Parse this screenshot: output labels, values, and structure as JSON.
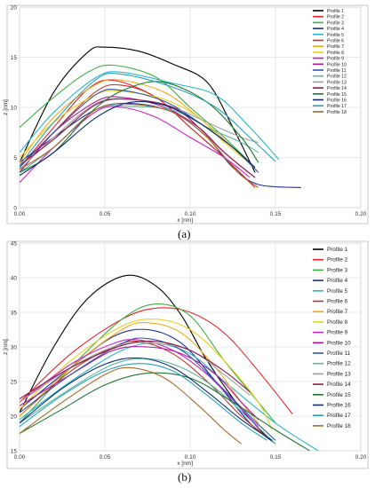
{
  "figure": {
    "panel_a_label": "(a)",
    "panel_b_label": "(b)"
  },
  "chart_data": [
    {
      "type": "line",
      "panel": "(a)",
      "title": "",
      "xlabel": "x [nm]",
      "ylabel": "z [nm]",
      "xlim": [
        0.0,
        0.2
      ],
      "ylim": [
        0,
        20
      ],
      "xticks": [
        "0.00",
        "0.05",
        "0.10",
        "0.15",
        "0.20"
      ],
      "yticks": [
        "0",
        "5",
        "10",
        "15",
        "20"
      ],
      "grid": true,
      "legend_position": "right-outside",
      "series": [
        {
          "name": "Profile 1",
          "color": "#000000",
          "x": [
            0.0,
            0.02,
            0.04,
            0.05,
            0.07,
            0.09,
            0.11,
            0.125,
            0.138
          ],
          "y": [
            4.5,
            11.5,
            15.5,
            16.0,
            15.6,
            14.3,
            12.5,
            8.0,
            3.5
          ]
        },
        {
          "name": "Profile 2",
          "color": "#e8232b",
          "x": [
            0.0,
            0.02,
            0.04,
            0.055,
            0.08,
            0.1,
            0.12,
            0.138
          ],
          "y": [
            4.0,
            8.0,
            11.8,
            12.7,
            11.0,
            8.0,
            5.0,
            2.0
          ]
        },
        {
          "name": "Profile 3",
          "color": "#3cb043",
          "x": [
            0.0,
            0.02,
            0.04,
            0.055,
            0.08,
            0.1,
            0.12,
            0.138
          ],
          "y": [
            8.0,
            11.0,
            13.5,
            14.2,
            13.0,
            10.0,
            7.0,
            4.0
          ]
        },
        {
          "name": "Profile 4",
          "color": "#1a2f9c",
          "x": [
            0.0,
            0.02,
            0.045,
            0.065,
            0.09,
            0.11,
            0.125,
            0.14,
            0.165
          ],
          "y": [
            4.5,
            7.0,
            9.8,
            10.4,
            9.5,
            7.0,
            4.0,
            2.3,
            2.0
          ]
        },
        {
          "name": "Profile 5",
          "color": "#2bb6c9",
          "x": [
            0.0,
            0.02,
            0.045,
            0.06,
            0.09,
            0.115,
            0.135,
            0.152
          ],
          "y": [
            5.5,
            9.5,
            13.0,
            13.5,
            12.4,
            11.2,
            8.0,
            4.8
          ]
        },
        {
          "name": "Profile 6",
          "color": "#c0352a",
          "x": [
            0.0,
            0.02,
            0.045,
            0.06,
            0.08,
            0.1,
            0.12,
            0.135
          ],
          "y": [
            3.5,
            7.5,
            11.6,
            12.2,
            11.0,
            8.0,
            5.0,
            2.5
          ]
        },
        {
          "name": "Profile 7",
          "color": "#f2a81d",
          "x": [
            0.0,
            0.02,
            0.045,
            0.06,
            0.085,
            0.105,
            0.125,
            0.14
          ],
          "y": [
            4.5,
            9.0,
            12.3,
            12.7,
            11.5,
            9.0,
            6.0,
            3.5
          ]
        },
        {
          "name": "Profile 8",
          "color": "#e8d11f",
          "x": [
            0.0,
            0.02,
            0.045,
            0.06,
            0.085,
            0.105,
            0.12,
            0.138
          ],
          "y": [
            5.0,
            8.5,
            11.3,
            11.6,
            10.8,
            9.0,
            6.5,
            4.0
          ]
        },
        {
          "name": "Profile 9",
          "color": "#cc22cc",
          "x": [
            0.0,
            0.02,
            0.045,
            0.06,
            0.08,
            0.1,
            0.12,
            0.135
          ],
          "y": [
            2.5,
            6.0,
            9.6,
            10.0,
            9.0,
            7.0,
            5.0,
            3.0
          ]
        },
        {
          "name": "Profile 10",
          "color": "#b5149c",
          "x": [
            0.0,
            0.02,
            0.045,
            0.06,
            0.085,
            0.105,
            0.12,
            0.138
          ],
          "y": [
            3.5,
            7.5,
            10.6,
            11.0,
            10.0,
            8.0,
            5.5,
            3.0
          ]
        },
        {
          "name": "Profile 11",
          "color": "#2e5aa8",
          "x": [
            0.0,
            0.02,
            0.045,
            0.06,
            0.085,
            0.105,
            0.125,
            0.14
          ],
          "y": [
            4.0,
            7.5,
            11.3,
            11.7,
            10.6,
            8.5,
            6.0,
            3.5
          ]
        },
        {
          "name": "Profile 12",
          "color": "#5ab5a8",
          "x": [
            0.0,
            0.02,
            0.045,
            0.065,
            0.09,
            0.11,
            0.13,
            0.14
          ],
          "y": [
            3.5,
            6.0,
            9.8,
            10.1,
            9.7,
            8.0,
            6.5,
            5.5
          ]
        },
        {
          "name": "Profile 13",
          "color": "#a0a0a0",
          "x": [
            0.0,
            0.02,
            0.045,
            0.065,
            0.09,
            0.11,
            0.13,
            0.14
          ],
          "y": [
            3.8,
            7.0,
            10.4,
            10.8,
            10.0,
            8.5,
            7.0,
            6.5
          ]
        },
        {
          "name": "Profile 14",
          "color": "#8a1c4a",
          "x": [
            0.0,
            0.02,
            0.045,
            0.065,
            0.09,
            0.105,
            0.12,
            0.138
          ],
          "y": [
            4.2,
            6.8,
            10.3,
            10.8,
            10.0,
            8.0,
            5.5,
            3.0
          ]
        },
        {
          "name": "Profile 15",
          "color": "#1c7a2e",
          "x": [
            0.0,
            0.02,
            0.045,
            0.065,
            0.085,
            0.11,
            0.13,
            0.14
          ],
          "y": [
            3.5,
            5.5,
            10.0,
            12.0,
            12.5,
            10.5,
            7.0,
            4.5
          ]
        },
        {
          "name": "Profile 16",
          "color": "#0f2a6e",
          "x": [
            0.0,
            0.02,
            0.045,
            0.065,
            0.085,
            0.105,
            0.125,
            0.138
          ],
          "y": [
            3.2,
            5.5,
            9.0,
            10.5,
            10.2,
            8.5,
            6.0,
            4.0
          ]
        },
        {
          "name": "Profile 17",
          "color": "#2aa0b8",
          "x": [
            0.0,
            0.02,
            0.045,
            0.06,
            0.09,
            0.115,
            0.135,
            0.15
          ],
          "y": [
            4.2,
            8.5,
            12.8,
            13.3,
            12.0,
            10.0,
            7.0,
            4.6
          ]
        },
        {
          "name": "Profile 18",
          "color": "#a86a2a",
          "x": [
            0.0,
            0.02,
            0.045,
            0.065,
            0.09,
            0.11,
            0.128,
            0.14
          ],
          "y": [
            3.8,
            6.0,
            9.8,
            10.3,
            9.5,
            7.0,
            3.5,
            2.0
          ]
        }
      ]
    },
    {
      "type": "line",
      "panel": "(b)",
      "title": "",
      "xlabel": "x [nm]",
      "ylabel": "z [nm]",
      "xlim": [
        0.0,
        0.2
      ],
      "ylim": [
        15,
        45
      ],
      "xticks": [
        "0.00",
        "0.05",
        "0.10",
        "0.15",
        "0.20"
      ],
      "yticks": [
        "15",
        "20",
        "25",
        "30",
        "35",
        "40",
        "45"
      ],
      "grid": true,
      "legend_position": "right-outside",
      "series": [
        {
          "name": "Profile 1",
          "color": "#000000",
          "x": [
            0.0,
            0.02,
            0.04,
            0.062,
            0.08,
            0.095,
            0.11,
            0.13,
            0.145
          ],
          "y": [
            20.5,
            30.0,
            37.0,
            40.3,
            38.8,
            34.5,
            28.0,
            21.0,
            17.0
          ]
        },
        {
          "name": "Profile 2",
          "color": "#e8232b",
          "x": [
            0.0,
            0.03,
            0.06,
            0.08,
            0.1,
            0.12,
            0.14,
            0.16
          ],
          "y": [
            22.0,
            29.0,
            34.0,
            35.6,
            35.0,
            32.0,
            26.5,
            20.3
          ]
        },
        {
          "name": "Profile 3",
          "color": "#3cb043",
          "x": [
            0.0,
            0.03,
            0.06,
            0.08,
            0.1,
            0.12,
            0.14,
            0.15
          ],
          "y": [
            19.0,
            27.0,
            34.0,
            36.2,
            34.5,
            28.0,
            22.0,
            19.0
          ]
        },
        {
          "name": "Profile 4",
          "color": "#1a2f9c",
          "x": [
            0.0,
            0.03,
            0.055,
            0.075,
            0.095,
            0.115,
            0.135,
            0.15
          ],
          "y": [
            21.0,
            27.0,
            31.5,
            32.5,
            30.5,
            25.0,
            19.0,
            16.0
          ]
        },
        {
          "name": "Profile 5",
          "color": "#2bb6c9",
          "x": [
            0.0,
            0.03,
            0.06,
            0.08,
            0.1,
            0.12,
            0.15,
            0.175
          ],
          "y": [
            19.5,
            25.0,
            29.5,
            30.5,
            29.0,
            25.0,
            19.0,
            15.0
          ]
        },
        {
          "name": "Profile 6",
          "color": "#c0352a",
          "x": [
            0.0,
            0.03,
            0.055,
            0.07,
            0.09,
            0.11,
            0.13,
            0.145
          ],
          "y": [
            20.0,
            26.5,
            30.0,
            30.8,
            29.0,
            25.0,
            20.0,
            17.0
          ]
        },
        {
          "name": "Profile 7",
          "color": "#f2a81d",
          "x": [
            0.0,
            0.03,
            0.06,
            0.075,
            0.095,
            0.115,
            0.13,
            0.14
          ],
          "y": [
            20.0,
            27.0,
            32.5,
            33.5,
            32.0,
            27.0,
            22.0,
            19.0
          ]
        },
        {
          "name": "Profile 8",
          "color": "#e8d11f",
          "x": [
            0.0,
            0.03,
            0.06,
            0.08,
            0.1,
            0.12,
            0.14,
            0.148
          ],
          "y": [
            21.0,
            28.0,
            33.0,
            34.0,
            32.5,
            28.0,
            22.0,
            18.0
          ]
        },
        {
          "name": "Profile 9",
          "color": "#cc22cc",
          "x": [
            0.0,
            0.03,
            0.055,
            0.07,
            0.09,
            0.11,
            0.13,
            0.14
          ],
          "y": [
            22.0,
            27.5,
            30.5,
            31.0,
            29.5,
            26.0,
            21.0,
            18.5
          ]
        },
        {
          "name": "Profile 10",
          "color": "#b5149c",
          "x": [
            0.0,
            0.03,
            0.055,
            0.075,
            0.095,
            0.115,
            0.13,
            0.14
          ],
          "y": [
            21.5,
            26.0,
            29.5,
            30.0,
            29.0,
            26.0,
            22.0,
            19.5
          ]
        },
        {
          "name": "Profile 11",
          "color": "#2e5aa8",
          "x": [
            0.0,
            0.03,
            0.06,
            0.075,
            0.095,
            0.115,
            0.135,
            0.15
          ],
          "y": [
            20.5,
            26.0,
            30.5,
            31.2,
            29.5,
            25.0,
            20.0,
            16.5
          ]
        },
        {
          "name": "Profile 12",
          "color": "#5ab5a8",
          "x": [
            0.0,
            0.03,
            0.055,
            0.075,
            0.095,
            0.115,
            0.135,
            0.15
          ],
          "y": [
            19.0,
            24.0,
            27.5,
            28.3,
            27.0,
            24.0,
            19.5,
            16.0
          ]
        },
        {
          "name": "Profile 13",
          "color": "#a0a0a0",
          "x": [
            0.0,
            0.03,
            0.055,
            0.075,
            0.1,
            0.12,
            0.135
          ],
          "y": [
            22.0,
            27.0,
            30.0,
            30.6,
            29.5,
            26.0,
            23.0
          ]
        },
        {
          "name": "Profile 14",
          "color": "#8a1c4a",
          "x": [
            0.0,
            0.03,
            0.06,
            0.08,
            0.1,
            0.12,
            0.135
          ],
          "y": [
            22.5,
            27.0,
            30.2,
            30.8,
            29.5,
            26.5,
            23.5
          ]
        },
        {
          "name": "Profile 15",
          "color": "#1c7a2e",
          "x": [
            0.0,
            0.025,
            0.05,
            0.075,
            0.1,
            0.125,
            0.15,
            0.17
          ],
          "y": [
            17.5,
            21.0,
            24.5,
            26.2,
            25.5,
            22.0,
            18.0,
            15.0
          ]
        },
        {
          "name": "Profile 16",
          "color": "#0f2a6e",
          "x": [
            0.0,
            0.025,
            0.05,
            0.07,
            0.09,
            0.11,
            0.13,
            0.148
          ],
          "y": [
            19.0,
            24.0,
            27.5,
            28.4,
            27.0,
            23.5,
            19.5,
            16.5
          ]
        },
        {
          "name": "Profile 17",
          "color": "#2aa0b8",
          "x": [
            0.0,
            0.025,
            0.05,
            0.07,
            0.09,
            0.11,
            0.13,
            0.145
          ],
          "y": [
            18.5,
            23.0,
            26.5,
            27.6,
            26.5,
            23.0,
            19.0,
            16.5
          ]
        },
        {
          "name": "Profile 18",
          "color": "#a86a2a",
          "x": [
            0.0,
            0.025,
            0.05,
            0.065,
            0.085,
            0.105,
            0.12,
            0.13
          ],
          "y": [
            17.5,
            22.0,
            26.0,
            27.0,
            25.5,
            21.5,
            18.0,
            16.0
          ]
        }
      ]
    }
  ]
}
